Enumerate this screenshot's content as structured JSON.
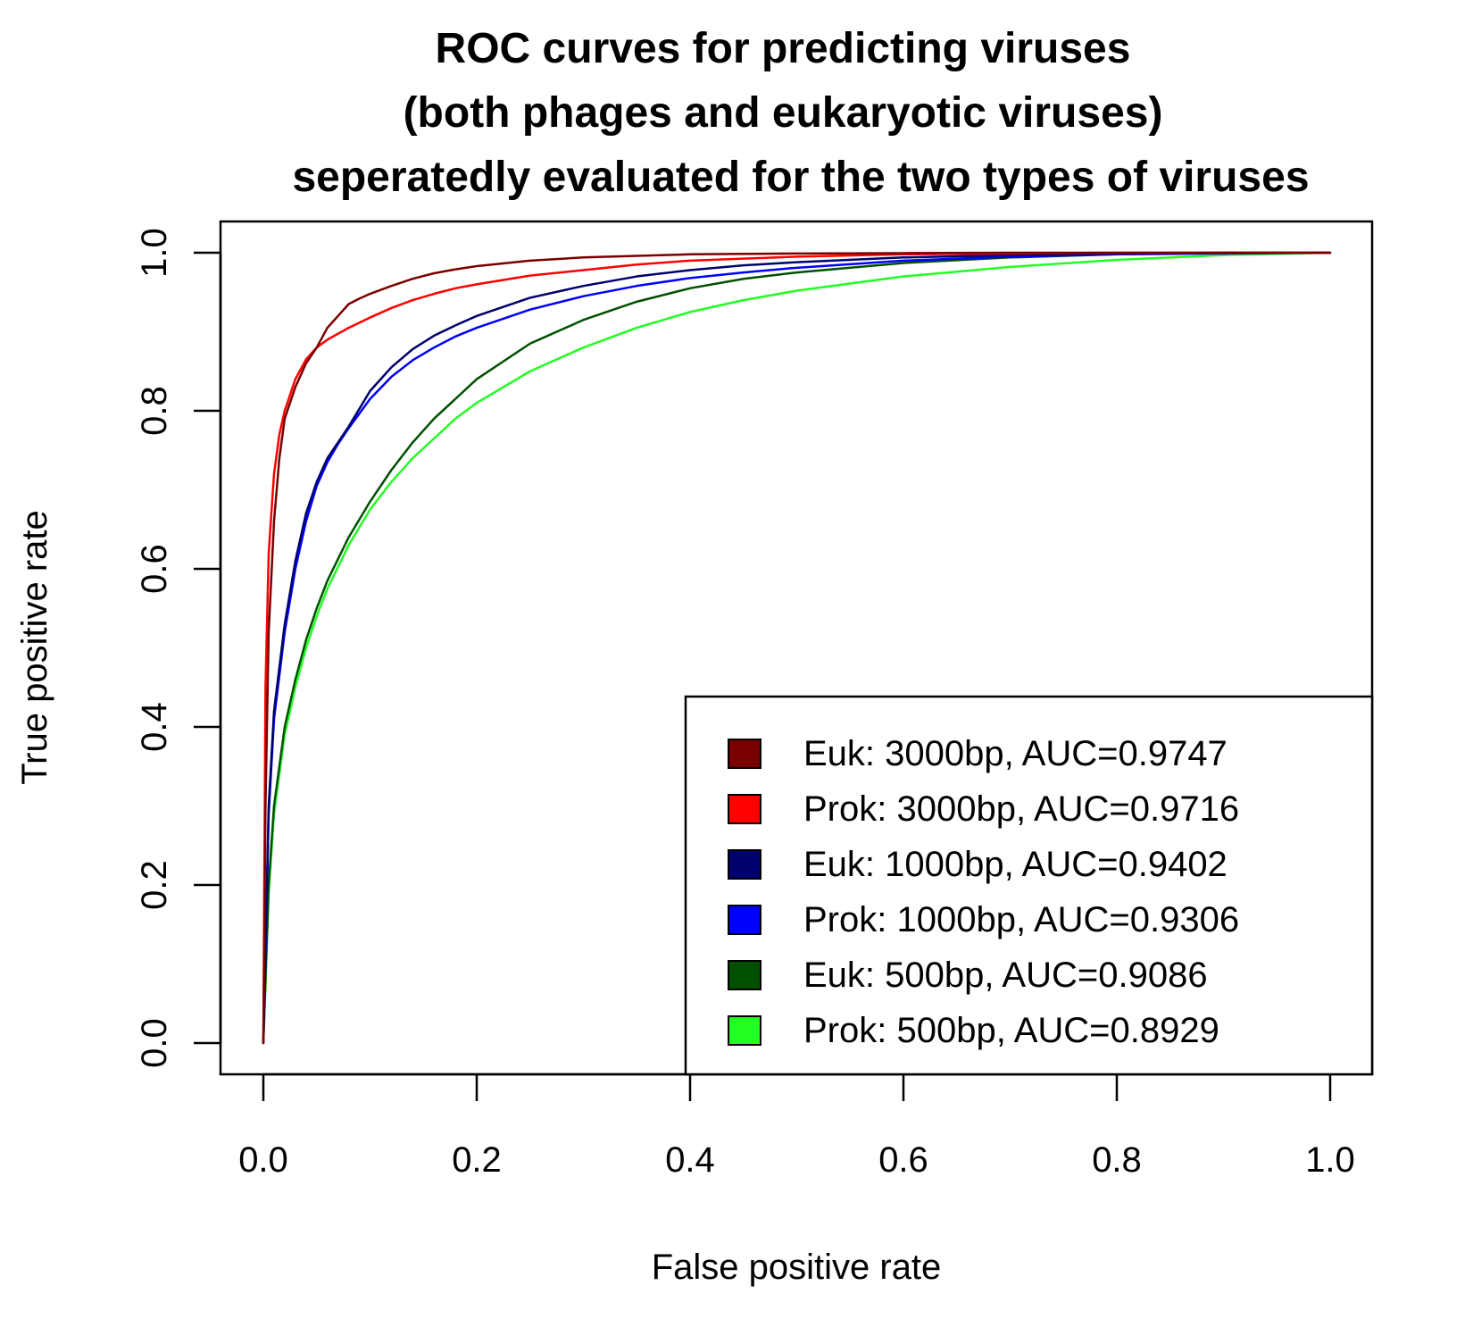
{
  "chart_data": {
    "type": "line",
    "title_lines": [
      "ROC curves for predicting viruses",
      "(both phages and eukaryotic viruses)",
      "seperatedly evaluated for the two types of viruses"
    ],
    "xlabel": "False positive rate",
    "ylabel": "True positive rate",
    "xlim": [
      0.0,
      1.0
    ],
    "ylim": [
      0.0,
      1.0
    ],
    "x_ticks": [
      0.0,
      0.2,
      0.4,
      0.6,
      0.8,
      1.0
    ],
    "x_tick_labels": [
      "0.0",
      "0.2",
      "0.4",
      "0.6",
      "0.8",
      "1.0"
    ],
    "y_ticks": [
      0.0,
      0.2,
      0.4,
      0.6,
      0.8,
      1.0
    ],
    "y_tick_labels": [
      "0.0",
      "0.2",
      "0.4",
      "0.6",
      "0.8",
      "1.0"
    ],
    "grid": false,
    "legend_position": "bottom-right",
    "series": [
      {
        "name": "Euk: 3000bp, AUC=0.9747",
        "color": "#7a0000",
        "x": [
          0,
          0.002,
          0.005,
          0.01,
          0.015,
          0.02,
          0.03,
          0.04,
          0.05,
          0.06,
          0.07,
          0.08,
          0.09,
          0.1,
          0.12,
          0.14,
          0.16,
          0.18,
          0.2,
          0.25,
          0.3,
          0.35,
          0.4,
          0.5,
          0.6,
          0.7,
          0.8,
          0.9,
          1.0
        ],
        "y": [
          0,
          0.3,
          0.52,
          0.66,
          0.74,
          0.79,
          0.83,
          0.86,
          0.88,
          0.905,
          0.92,
          0.935,
          0.942,
          0.948,
          0.958,
          0.967,
          0.974,
          0.979,
          0.983,
          0.99,
          0.994,
          0.996,
          0.998,
          0.999,
          0.9995,
          1.0,
          1.0,
          1.0,
          1.0
        ]
      },
      {
        "name": "Prok: 3000bp, AUC=0.9716",
        "color": "#ff0000",
        "x": [
          0,
          0.002,
          0.005,
          0.01,
          0.015,
          0.02,
          0.03,
          0.04,
          0.05,
          0.06,
          0.08,
          0.1,
          0.12,
          0.14,
          0.16,
          0.18,
          0.2,
          0.25,
          0.3,
          0.35,
          0.4,
          0.5,
          0.6,
          0.7,
          0.8,
          0.9,
          1.0
        ],
        "y": [
          0,
          0.45,
          0.62,
          0.72,
          0.77,
          0.8,
          0.84,
          0.865,
          0.88,
          0.89,
          0.905,
          0.918,
          0.93,
          0.94,
          0.948,
          0.955,
          0.96,
          0.971,
          0.978,
          0.985,
          0.99,
          0.995,
          0.998,
          0.999,
          1.0,
          1.0,
          1.0
        ]
      },
      {
        "name": "Euk: 1000bp, AUC=0.9402",
        "color": "#00006e",
        "x": [
          0,
          0.005,
          0.01,
          0.02,
          0.03,
          0.04,
          0.05,
          0.06,
          0.07,
          0.08,
          0.1,
          0.12,
          0.14,
          0.16,
          0.18,
          0.2,
          0.25,
          0.3,
          0.35,
          0.4,
          0.45,
          0.5,
          0.6,
          0.7,
          0.8,
          0.9,
          1.0
        ],
        "y": [
          0,
          0.3,
          0.42,
          0.53,
          0.61,
          0.67,
          0.71,
          0.74,
          0.76,
          0.78,
          0.825,
          0.855,
          0.878,
          0.895,
          0.908,
          0.92,
          0.943,
          0.958,
          0.97,
          0.978,
          0.984,
          0.988,
          0.994,
          0.997,
          0.999,
          1.0,
          1.0
        ]
      },
      {
        "name": "Prok: 1000bp, AUC=0.9306",
        "color": "#0000ff",
        "x": [
          0,
          0.005,
          0.01,
          0.02,
          0.03,
          0.04,
          0.05,
          0.06,
          0.07,
          0.08,
          0.1,
          0.12,
          0.14,
          0.16,
          0.18,
          0.2,
          0.25,
          0.3,
          0.35,
          0.4,
          0.45,
          0.5,
          0.6,
          0.7,
          0.8,
          0.9,
          1.0
        ],
        "y": [
          0,
          0.29,
          0.41,
          0.52,
          0.6,
          0.66,
          0.705,
          0.735,
          0.758,
          0.778,
          0.815,
          0.843,
          0.864,
          0.88,
          0.894,
          0.905,
          0.928,
          0.945,
          0.958,
          0.968,
          0.975,
          0.981,
          0.99,
          0.995,
          0.998,
          0.999,
          1.0
        ]
      },
      {
        "name": "Euk: 500bp, AUC=0.9086",
        "color": "#005000",
        "x": [
          0,
          0.005,
          0.01,
          0.02,
          0.03,
          0.04,
          0.05,
          0.06,
          0.08,
          0.1,
          0.12,
          0.14,
          0.16,
          0.18,
          0.2,
          0.25,
          0.3,
          0.35,
          0.4,
          0.45,
          0.5,
          0.6,
          0.7,
          0.8,
          0.9,
          1.0
        ],
        "y": [
          0,
          0.2,
          0.3,
          0.4,
          0.46,
          0.51,
          0.55,
          0.585,
          0.64,
          0.685,
          0.725,
          0.76,
          0.79,
          0.815,
          0.84,
          0.885,
          0.915,
          0.938,
          0.955,
          0.967,
          0.975,
          0.987,
          0.994,
          0.998,
          1.0,
          1.0
        ]
      },
      {
        "name": "Prok: 500bp, AUC=0.8929",
        "color": "#22ff22",
        "x": [
          0,
          0.005,
          0.01,
          0.02,
          0.03,
          0.04,
          0.05,
          0.06,
          0.08,
          0.1,
          0.12,
          0.14,
          0.16,
          0.18,
          0.2,
          0.25,
          0.3,
          0.35,
          0.4,
          0.45,
          0.5,
          0.6,
          0.7,
          0.8,
          0.9,
          1.0
        ],
        "y": [
          0,
          0.19,
          0.29,
          0.39,
          0.45,
          0.5,
          0.54,
          0.575,
          0.63,
          0.675,
          0.71,
          0.74,
          0.765,
          0.79,
          0.81,
          0.85,
          0.88,
          0.905,
          0.925,
          0.94,
          0.952,
          0.97,
          0.982,
          0.991,
          0.997,
          1.0
        ]
      }
    ]
  }
}
